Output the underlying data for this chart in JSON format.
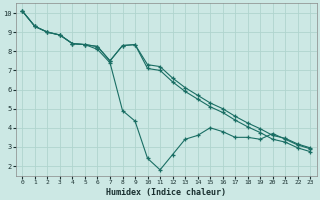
{
  "xlabel": "Humidex (Indice chaleur)",
  "bg_color": "#cce8e4",
  "grid_color": "#b0d4ce",
  "line_color": "#1a6e64",
  "xlim": [
    -0.5,
    23.5
  ],
  "ylim": [
    1.5,
    10.5
  ],
  "xticks": [
    0,
    1,
    2,
    3,
    4,
    5,
    6,
    7,
    8,
    9,
    10,
    11,
    12,
    13,
    14,
    15,
    16,
    17,
    18,
    19,
    20,
    21,
    22,
    23
  ],
  "yticks": [
    2,
    3,
    4,
    5,
    6,
    7,
    8,
    9,
    10
  ],
  "line1_x": [
    0,
    1,
    2,
    3,
    4,
    5,
    6,
    7,
    8,
    9,
    10,
    11,
    12,
    13,
    14,
    15,
    16,
    17,
    18,
    19,
    20,
    21,
    22,
    23
  ],
  "line1_y": [
    10.1,
    9.3,
    9.0,
    8.85,
    8.4,
    8.35,
    8.25,
    7.5,
    8.3,
    8.35,
    7.3,
    7.2,
    6.6,
    6.1,
    5.7,
    5.3,
    5.0,
    4.6,
    4.25,
    3.95,
    3.6,
    3.45,
    3.15,
    2.95
  ],
  "line2_x": [
    0,
    1,
    2,
    3,
    4,
    5,
    6,
    7,
    8,
    9,
    10,
    11,
    12,
    13,
    14,
    15,
    16,
    17,
    18,
    19,
    20,
    21,
    22,
    23
  ],
  "line2_y": [
    10.1,
    9.3,
    9.0,
    8.85,
    8.4,
    8.35,
    8.25,
    7.5,
    8.3,
    8.35,
    7.1,
    7.0,
    6.4,
    5.9,
    5.5,
    5.1,
    4.8,
    4.4,
    4.05,
    3.75,
    3.4,
    3.25,
    2.95,
    2.75
  ],
  "line3_x": [
    0,
    1,
    2,
    3,
    4,
    5,
    6,
    7,
    8,
    9,
    10,
    11,
    12,
    13,
    14,
    15,
    16,
    17,
    18,
    19,
    20,
    21,
    22,
    23
  ],
  "line3_y": [
    10.1,
    9.3,
    9.0,
    8.85,
    8.4,
    8.35,
    8.1,
    7.4,
    4.9,
    4.35,
    2.4,
    1.8,
    2.6,
    3.4,
    3.6,
    4.0,
    3.8,
    3.5,
    3.5,
    3.4,
    3.7,
    3.4,
    3.1,
    2.9
  ]
}
